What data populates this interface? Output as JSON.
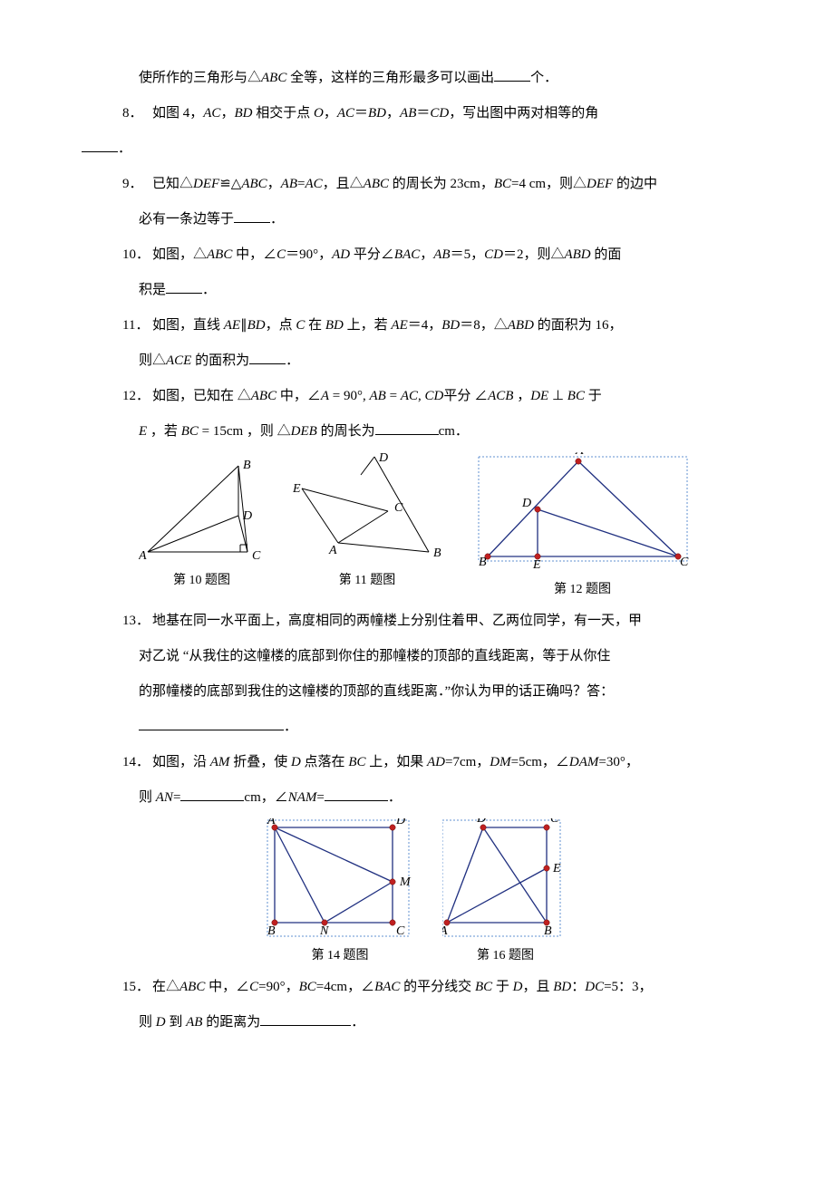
{
  "q7_tail": {
    "pre": "使所作的三角形与△",
    "abc": "ABC",
    "mid": " 全等，这样的三角形最多可以画出",
    "post": "个．"
  },
  "q8": {
    "n": "8．",
    "t1": "如图 4，",
    "ac": "AC",
    "t2": "，",
    "bd": "BD",
    "t3": " 相交于点 ",
    "o": "O",
    "t4": "，",
    "ac2": "AC",
    "eq": "＝",
    "bd2": "BD",
    "t5": "，",
    "ab": "AB",
    "eq2": "＝",
    "cd": "CD",
    "t6": "，写出图中两对相等的角",
    "end": "．"
  },
  "q9": {
    "n": "9．",
    "t1": "已知△",
    "def": "DEF",
    "cong": "≌",
    "t2": "△",
    "abc": "ABC",
    "t3": "，",
    "ab": "AB",
    "eq": "=",
    "ac": "AC",
    "t4": "，且△",
    "abc2": "ABC",
    "t5": " 的周长为 23cm，",
    "bc": "BC",
    "t6": "=4 cm，则△",
    "def2": "DEF",
    "t7": " 的边中",
    "line2a": "必有一条边等于",
    "end": "．"
  },
  "q10": {
    "n": "10．",
    "t1": "如图，△",
    "abc": "ABC",
    "t2": " 中，∠",
    "c": "C",
    "t3": "＝90°，",
    "ad": "AD",
    "t4": " 平分∠",
    "bac": "BAC",
    "t5": "，",
    "ab": "AB",
    "t6": "＝5，",
    "cd": "CD",
    "t7": "＝2，则△",
    "abd": "ABD",
    "t8": " 的面",
    "line2a": "积是",
    "end": "．"
  },
  "q11": {
    "n": "11．",
    "t1": "如图，直线 ",
    "ae": "AE",
    "par": "∥",
    "bd": "BD",
    "t2": "，点 ",
    "c": "C",
    "t3": " 在 ",
    "bd2": "BD",
    "t4": " 上，若 ",
    "ae2": "AE",
    "t5": "＝4，",
    "bd3": "BD",
    "t6": "＝8，△",
    "abd": "ABD",
    "t7": " 的面积为 16，",
    "line2a": "则△",
    "ace": "ACE",
    "line2b": " 的面积为",
    "end": "．"
  },
  "q12": {
    "n": "12．",
    "t1": "如图，已知在 △",
    "abc": "ABC",
    "t2": " 中，∠",
    "a": "A",
    "t3": " = 90°, ",
    "ab": "AB",
    "eq": " = ",
    "ac": "AC",
    "t4": ", ",
    "cd": "CD",
    "t5": "平分 ∠",
    "acb": "ACB",
    "t6": " ，",
    "de": "DE",
    "perp": " ⊥ ",
    "bc": "BC",
    "t7": " 于",
    "line2a": "E",
    "line2b": " ，若 ",
    "bc2": "BC",
    "line2c": " = 15cm ，则 △",
    "deb": "DEB",
    "line2d": " 的周长为",
    "unit": "cm．"
  },
  "q13": {
    "n": "13．",
    "l1": "地基在同一水平面上，高度相同的两幢楼上分别住着甲、乙两位同学，有一天，甲",
    "l2": "对乙说 “从我住的这幢楼的底部到你住的那幢楼的顶部的直线距离，等于从你住",
    "l3": "的那幢楼的底部到我住的这幢楼的顶部的直线距离．”你认为甲的话正确吗？答：",
    "end": "．"
  },
  "q14": {
    "n": "14．",
    "t1": "如图，沿 ",
    "am": "AM",
    "t2": " 折叠，使 ",
    "d": "D",
    "t3": " 点落在 ",
    "bc": "BC",
    "t4": " 上，如果 ",
    "ad": "AD",
    "t5": "=7cm，",
    "dm": "DM",
    "t6": "=5cm，∠",
    "dam": "DAM",
    "t7": "=30°，",
    "line2a": "则 ",
    "an": "AN",
    "line2b": "=",
    "unit1": "cm，∠",
    "nam": "NAM",
    "line2c": "=",
    "end": "．"
  },
  "q15": {
    "n": "15．",
    "t1": "在△",
    "abc": "ABC",
    "t2": " 中，∠",
    "c": "C",
    "t3": "=90°，",
    "bc": "BC",
    "t4": "=4cm，∠",
    "bac": "BAC",
    "t5": " 的平分线交 ",
    "bc2": "BC",
    "t6": " 于 ",
    "d": "D",
    "t7": "，且 ",
    "bd": "BD",
    "t8": "：",
    "dc": "DC",
    "t9": "=5：3，",
    "line2a": "则 ",
    "d2": "D",
    "line2b": " 到 ",
    "ab": "AB",
    "line2c": " 的距离为",
    "end": "．"
  },
  "figcaps": {
    "f10": "第 10 题图",
    "f11": "第 11 题图",
    "f12": "第 12 题图",
    "f14": "第 14 题图",
    "f16": "第 16 题图"
  },
  "fig10": {
    "points": {
      "A": [
        10,
        110
      ],
      "C": [
        120,
        110
      ],
      "B": [
        110,
        15
      ],
      "D": [
        110,
        70
      ]
    },
    "labels": {
      "A": [
        0,
        118,
        "A"
      ],
      "C": [
        125,
        118,
        "C"
      ],
      "B": [
        115,
        18,
        "B"
      ],
      "D": [
        115,
        74,
        "D"
      ]
    }
  },
  "fig11": {
    "points": {
      "E": [
        10,
        40
      ],
      "D": [
        90,
        5
      ],
      "A": [
        50,
        100
      ],
      "C": [
        105,
        65
      ],
      "B": [
        150,
        110
      ]
    },
    "labels": {
      "E": [
        0,
        44,
        "E"
      ],
      "D": [
        95,
        10,
        "D"
      ],
      "A": [
        40,
        112,
        "A"
      ],
      "C": [
        112,
        65,
        "C"
      ],
      "B": [
        155,
        115,
        "B"
      ]
    }
  },
  "fig12": {
    "points": {
      "A": [
        120,
        10
      ],
      "B": [
        20,
        115
      ],
      "C": [
        230,
        115
      ],
      "D": [
        75,
        63
      ],
      "E": [
        75,
        115
      ]
    },
    "labels": {
      "A": [
        117,
        2,
        "A"
      ],
      "B": [
        10,
        125,
        "B"
      ],
      "C": [
        232,
        125,
        "C"
      ],
      "D": [
        58,
        60,
        "D"
      ],
      "E": [
        70,
        128,
        "E"
      ]
    }
  },
  "fig14": {
    "points": {
      "A": [
        10,
        10
      ],
      "D": [
        140,
        10
      ],
      "B": [
        10,
        115
      ],
      "C": [
        140,
        115
      ],
      "M": [
        140,
        70
      ],
      "N": [
        65,
        115
      ]
    },
    "labels": {
      "A": [
        2,
        6,
        "A"
      ],
      "D": [
        144,
        6,
        "D"
      ],
      "B": [
        2,
        128,
        "B"
      ],
      "C": [
        144,
        128,
        "C"
      ],
      "M": [
        148,
        74,
        "M"
      ],
      "N": [
        60,
        128,
        "N"
      ]
    }
  },
  "fig16": {
    "points": {
      "D": [
        45,
        10
      ],
      "C": [
        115,
        10
      ],
      "A": [
        5,
        115
      ],
      "B": [
        115,
        115
      ],
      "E": [
        115,
        55
      ]
    },
    "labels": {
      "D": [
        38,
        4,
        "D"
      ],
      "C": [
        119,
        4,
        "C"
      ],
      "A": [
        -3,
        128,
        "A"
      ],
      "B": [
        112,
        128,
        "B"
      ],
      "E": [
        122,
        59,
        "E"
      ]
    }
  },
  "colors": {
    "text": "#000000",
    "blue_line": "#203080",
    "blue_dash": "#6090d0",
    "red_dot": "#c02020",
    "bg": "#ffffff"
  },
  "fontsize": {
    "body": 15,
    "caption": 14,
    "svg_label": 14
  }
}
